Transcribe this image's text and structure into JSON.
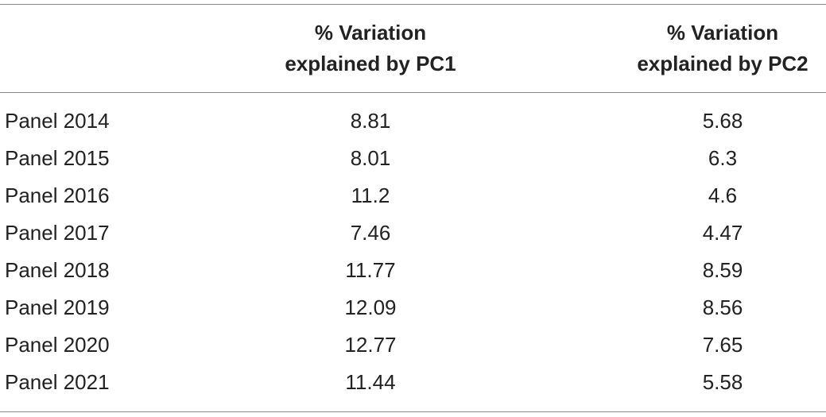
{
  "table": {
    "header": [
      [],
      [
        "% Variation",
        "explained by PC1"
      ],
      [
        "% Variation",
        "explained by PC2"
      ]
    ],
    "rows": [
      [
        "Panel 2014",
        8.81,
        5.68
      ],
      [
        "Panel 2015",
        8.01,
        6.3
      ],
      [
        "Panel 2016",
        11.2,
        4.6
      ],
      [
        "Panel 2017",
        7.46,
        4.47
      ],
      [
        "Panel 2018",
        11.77,
        8.59
      ],
      [
        "Panel 2019",
        12.09,
        8.56
      ],
      [
        "Panel 2020",
        12.77,
        7.65
      ],
      [
        "Panel 2021",
        11.44,
        5.58
      ]
    ]
  }
}
